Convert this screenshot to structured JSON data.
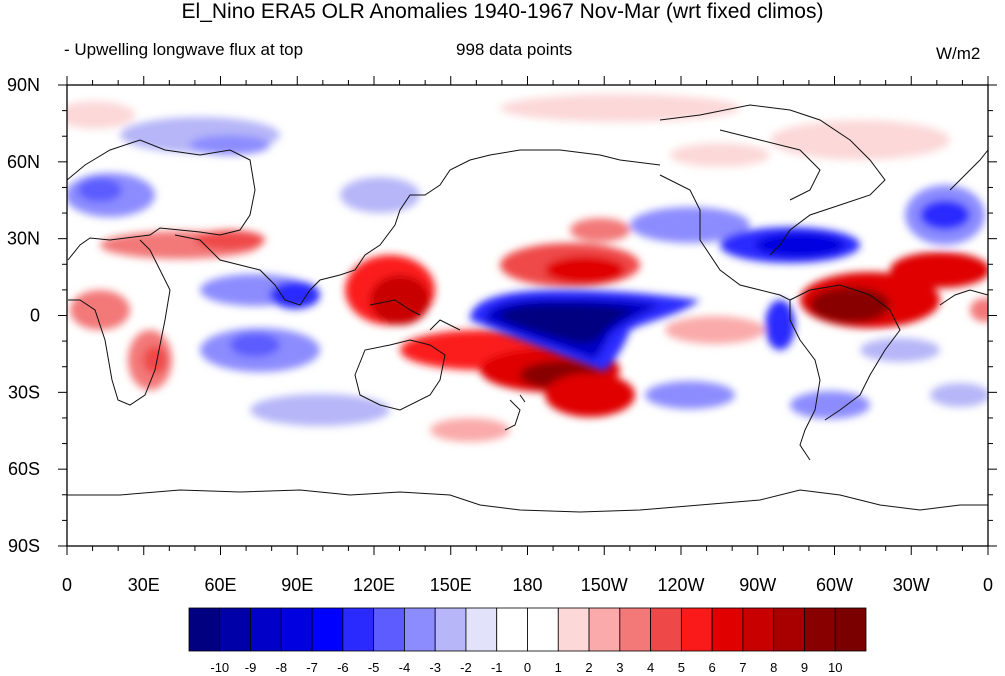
{
  "title": "El_Nino ERA5 OLR Anomalies 1940-1967 Nov-Mar (wrt fixed climos)",
  "subtitle_left": "- Upwelling longwave flux at top",
  "subtitle_center": "998 data points",
  "units": "W/m2",
  "lat_labels": [
    "90N",
    "60N",
    "30N",
    "0",
    "30S",
    "60S",
    "90S"
  ],
  "lon_labels": [
    "0",
    "30E",
    "60E",
    "90E",
    "120E",
    "150E",
    "180",
    "150W",
    "120W",
    "90W",
    "60W",
    "30W",
    "0"
  ],
  "colorbar": {
    "labels": [
      "-10",
      "-9",
      "-8",
      "-7",
      "-6",
      "-5",
      "-4",
      "-3",
      "-2",
      "-1",
      "0",
      "1",
      "2",
      "3",
      "4",
      "5",
      "6",
      "7",
      "8",
      "9",
      "10"
    ],
    "colors": [
      "#000080",
      "#0000a8",
      "#0000c8",
      "#0000e0",
      "#0000ff",
      "#2a2aff",
      "#5c5cff",
      "#8c8cff",
      "#b6b6f8",
      "#e2e2fb",
      "#ffffff",
      "#ffffff",
      "#fcd8d8",
      "#faaaaa",
      "#f37878",
      "#ef4848",
      "#fb1a1a",
      "#e00000",
      "#c80000",
      "#a80000",
      "#880000",
      "#7a0000"
    ]
  },
  "anomaly_regions": [
    {
      "name": "central-pacific-negative",
      "lon": 198,
      "lat": 0,
      "value": -10
    },
    {
      "name": "spcz-positive",
      "lon": 210,
      "lat": -22,
      "value": 9
    },
    {
      "name": "maritime-continent-positive",
      "lon": 125,
      "lat": 5,
      "value": 8
    },
    {
      "name": "north-pacific-positive",
      "lon": 215,
      "lat": 20,
      "value": 7
    },
    {
      "name": "amazon-positive",
      "lon": 305,
      "lat": 0,
      "value": 9
    },
    {
      "name": "gulf-of-mexico-negative",
      "lon": 265,
      "lat": 25,
      "value": -8
    },
    {
      "name": "indian-ocean-negative",
      "lon": 90,
      "lat": 5,
      "value": -6
    },
    {
      "name": "southern-africa-positive",
      "lon": 30,
      "lat": -20,
      "value": 5
    },
    {
      "name": "north-africa-positive",
      "lon": 45,
      "lat": 25,
      "value": 5
    }
  ]
}
